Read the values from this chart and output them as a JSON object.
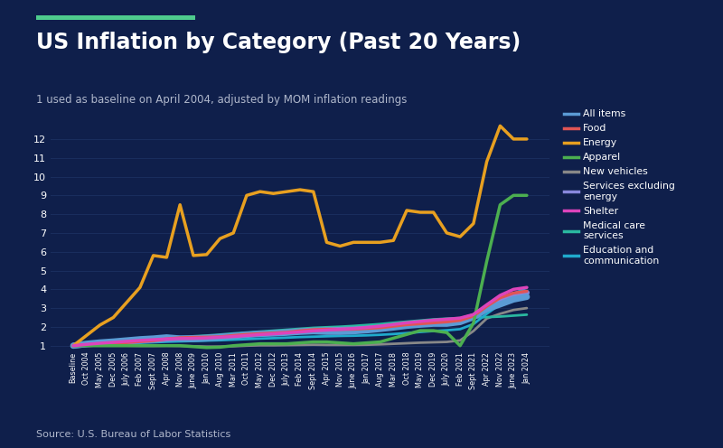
{
  "title": "US Inflation by Category (Past 20 Years)",
  "subtitle": "1 used as baseline on April 2004, adjusted by MOM inflation readings",
  "source": "Source: U.S. Bureau of Labor Statistics",
  "background_color": "#0f1f4b",
  "accent_color": "#4ecb8d",
  "text_color": "#ffffff",
  "subtitle_color": "#b0b8cc",
  "grid_color": "#1a2e5e",
  "x_labels": [
    "Baseline",
    "Oct 2004",
    "May 2005",
    "Dec 2005",
    "July 2006",
    "Feb 2007",
    "Sept 2007",
    "Apr 2008",
    "Nov 2008",
    "June 2009",
    "Jan 2010",
    "Aug 2010",
    "Mar 2011",
    "Oct 2011",
    "May 2012",
    "Dec 2012",
    "July 2013",
    "Feb 2014",
    "Sept 2014",
    "Apr 2015",
    "Nov 2015",
    "June 2016",
    "Jan 2017",
    "Aug 2017",
    "Mar 2018",
    "Oct 2018",
    "May 2019",
    "Dec 2019",
    "July 2020",
    "Feb 2021",
    "Sept 2021",
    "Apr 2022",
    "Nov 2022",
    "June 2023",
    "Jan 2024"
  ],
  "series": {
    "All items": {
      "color": "#5b9bd5",
      "linewidth": 5.0,
      "zorder": 5,
      "values": [
        1.0,
        1.1,
        1.17,
        1.22,
        1.28,
        1.34,
        1.38,
        1.44,
        1.38,
        1.36,
        1.39,
        1.44,
        1.51,
        1.58,
        1.63,
        1.65,
        1.69,
        1.74,
        1.77,
        1.74,
        1.74,
        1.77,
        1.82,
        1.89,
        1.97,
        2.06,
        2.12,
        2.17,
        2.17,
        2.26,
        2.52,
        2.95,
        3.2,
        3.46,
        3.6
      ]
    },
    "Food": {
      "color": "#e05555",
      "linewidth": 2.5,
      "zorder": 6,
      "values": [
        1.0,
        1.04,
        1.09,
        1.13,
        1.17,
        1.22,
        1.27,
        1.36,
        1.42,
        1.44,
        1.45,
        1.47,
        1.54,
        1.6,
        1.64,
        1.67,
        1.71,
        1.79,
        1.85,
        1.87,
        1.87,
        1.88,
        1.92,
        1.96,
        2.04,
        2.12,
        2.17,
        2.22,
        2.27,
        2.35,
        2.58,
        3.1,
        3.55,
        3.8,
        3.9
      ]
    },
    "Energy": {
      "color": "#e8a020",
      "linewidth": 2.5,
      "zorder": 7,
      "values": [
        1.0,
        1.55,
        2.1,
        2.5,
        3.3,
        4.1,
        5.8,
        5.7,
        8.5,
        5.8,
        5.85,
        6.7,
        7.0,
        9.0,
        9.2,
        9.1,
        9.2,
        9.3,
        9.2,
        6.5,
        6.3,
        6.5,
        6.5,
        6.5,
        6.6,
        8.2,
        8.1,
        8.1,
        7.0,
        6.8,
        7.5,
        10.8,
        12.7,
        12.0,
        12.0
      ]
    },
    "Apparel": {
      "color": "#4caf50",
      "linewidth": 2.5,
      "zorder": 8,
      "values": [
        1.0,
        1.0,
        1.0,
        1.0,
        1.0,
        1.0,
        1.0,
        1.0,
        1.0,
        0.95,
        0.9,
        0.92,
        1.0,
        1.05,
        1.1,
        1.1,
        1.1,
        1.15,
        1.2,
        1.2,
        1.15,
        1.1,
        1.15,
        1.2,
        1.4,
        1.6,
        1.8,
        1.8,
        1.7,
        1.0,
        2.2,
        5.5,
        8.5,
        9.0,
        9.0
      ]
    },
    "New vehicles": {
      "color": "#888888",
      "linewidth": 2.0,
      "zorder": 3,
      "values": [
        1.0,
        1.0,
        1.0,
        1.0,
        1.0,
        0.99,
        0.99,
        1.0,
        0.99,
        0.97,
        0.95,
        0.95,
        0.97,
        1.0,
        1.02,
        1.02,
        1.03,
        1.04,
        1.05,
        1.04,
        1.04,
        1.04,
        1.05,
        1.07,
        1.1,
        1.13,
        1.16,
        1.18,
        1.2,
        1.28,
        1.78,
        2.45,
        2.7,
        2.9,
        3.0
      ]
    },
    "Services excl energy": {
      "color": "#8888dd",
      "linewidth": 4.5,
      "zorder": 4,
      "values": [
        1.0,
        1.06,
        1.12,
        1.17,
        1.22,
        1.27,
        1.31,
        1.36,
        1.38,
        1.4,
        1.43,
        1.48,
        1.53,
        1.59,
        1.63,
        1.67,
        1.72,
        1.77,
        1.81,
        1.83,
        1.85,
        1.87,
        1.91,
        1.97,
        2.04,
        2.12,
        2.19,
        2.25,
        2.3,
        2.37,
        2.57,
        3.05,
        3.45,
        3.72,
        3.82
      ]
    },
    "Shelter": {
      "color": "#dd44bb",
      "linewidth": 2.5,
      "zorder": 9,
      "values": [
        1.0,
        1.07,
        1.13,
        1.18,
        1.23,
        1.28,
        1.32,
        1.36,
        1.38,
        1.39,
        1.41,
        1.45,
        1.49,
        1.54,
        1.59,
        1.63,
        1.68,
        1.73,
        1.79,
        1.83,
        1.87,
        1.91,
        1.97,
        2.04,
        2.13,
        2.22,
        2.29,
        2.36,
        2.41,
        2.47,
        2.66,
        3.18,
        3.68,
        4.0,
        4.1
      ]
    },
    "Medical care services": {
      "color": "#2ab8a0",
      "linewidth": 2.0,
      "zorder": 3,
      "values": [
        1.0,
        1.05,
        1.11,
        1.17,
        1.23,
        1.28,
        1.34,
        1.4,
        1.45,
        1.5,
        1.54,
        1.59,
        1.65,
        1.7,
        1.75,
        1.8,
        1.85,
        1.9,
        1.95,
        1.98,
        2.01,
        2.05,
        2.1,
        2.15,
        2.22,
        2.28,
        2.34,
        2.4,
        2.44,
        2.47,
        2.5,
        2.52,
        2.55,
        2.6,
        2.65
      ]
    },
    "Education and communication": {
      "color": "#20aacc",
      "linewidth": 2.0,
      "zorder": 3,
      "values": [
        1.0,
        1.03,
        1.06,
        1.09,
        1.12,
        1.15,
        1.18,
        1.21,
        1.23,
        1.25,
        1.27,
        1.29,
        1.32,
        1.35,
        1.38,
        1.4,
        1.43,
        1.46,
        1.48,
        1.5,
        1.52,
        1.53,
        1.55,
        1.58,
        1.62,
        1.67,
        1.73,
        1.78,
        1.82,
        1.88,
        2.15,
        2.7,
        3.2,
        3.75,
        4.1
      ]
    }
  },
  "ylim": [
    0.8,
    13.2
  ],
  "yticks": [
    1,
    2,
    3,
    4,
    5,
    6,
    7,
    8,
    9,
    10,
    11,
    12
  ],
  "figsize": [
    8.0,
    4.96
  ],
  "dpi": 100
}
